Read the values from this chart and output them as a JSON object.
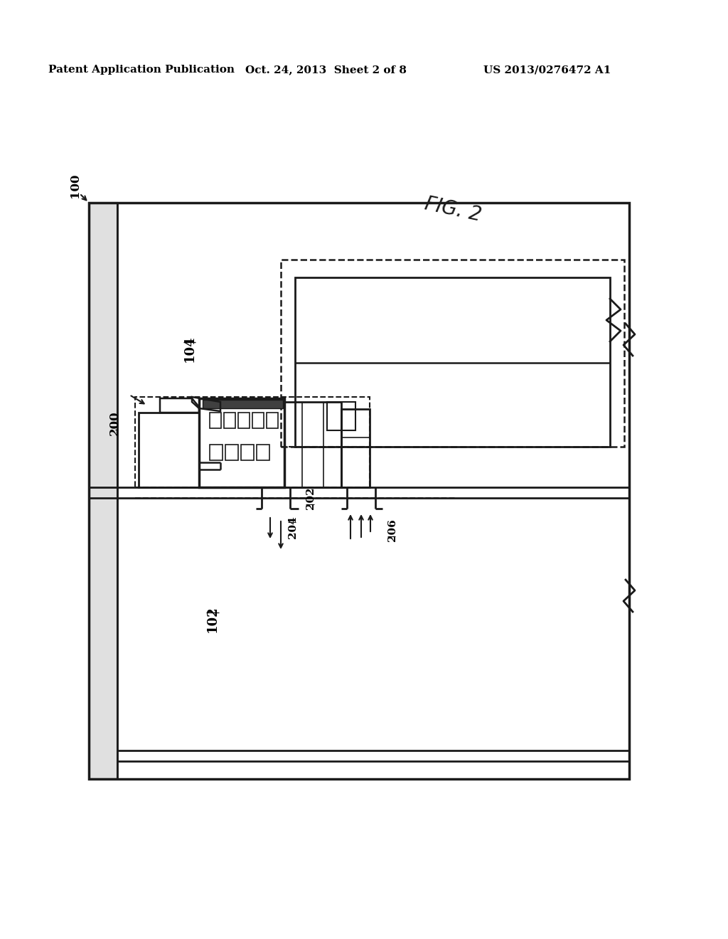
{
  "header_left": "Patent Application Publication",
  "header_mid": "Oct. 24, 2013  Sheet 2 of 8",
  "header_right": "US 2013/0276472 A1",
  "fig_label": "FIG. 2",
  "ref_100": "100",
  "ref_102": "102",
  "ref_104": "104",
  "ref_200": "200",
  "ref_202": "202",
  "ref_204": "204",
  "ref_206": "206",
  "bg_color": "#ffffff",
  "line_color": "#1a1a1a"
}
